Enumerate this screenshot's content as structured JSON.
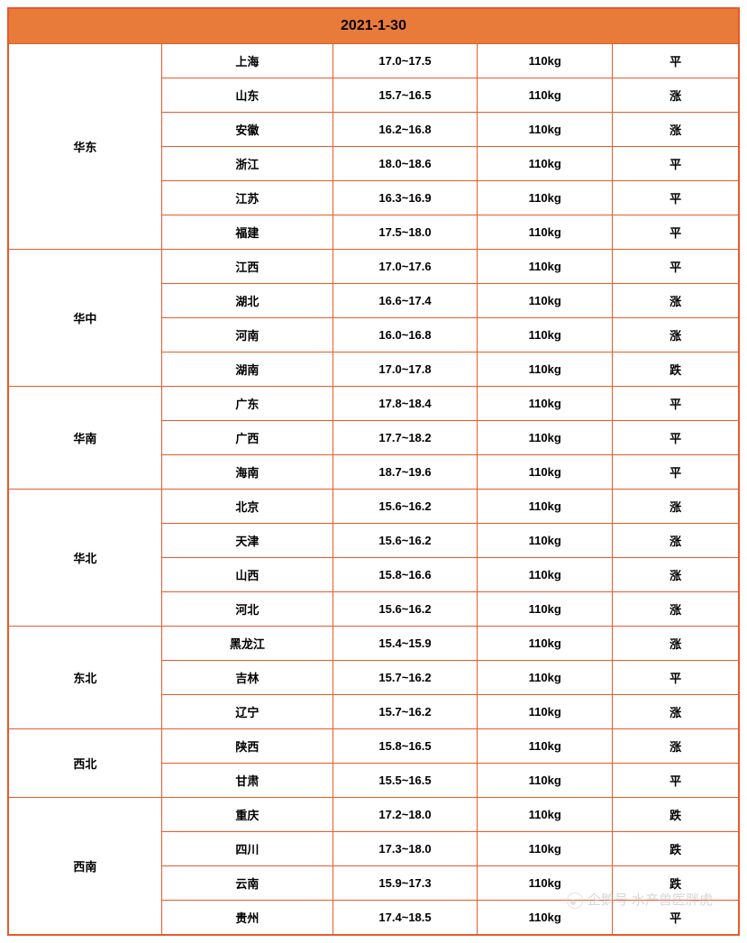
{
  "title": "2021-1-30",
  "trend_colors": {
    "up": "#e03020",
    "down": "#3db04a",
    "flat": "#000000"
  },
  "trend_labels": {
    "up": "涨",
    "down": "跌",
    "flat": "平"
  },
  "border_color": "#e85a2a",
  "header_bg": "#e97b3a",
  "regions": [
    {
      "name": "华东",
      "rows": [
        {
          "province": "上海",
          "price": "17.0~17.5",
          "weight": "110kg",
          "trend": "flat"
        },
        {
          "province": "山东",
          "price": "15.7~16.5",
          "weight": "110kg",
          "trend": "up"
        },
        {
          "province": "安徽",
          "price": "16.2~16.8",
          "weight": "110kg",
          "trend": "up"
        },
        {
          "province": "浙江",
          "price": "18.0~18.6",
          "weight": "110kg",
          "trend": "flat"
        },
        {
          "province": "江苏",
          "price": "16.3~16.9",
          "weight": "110kg",
          "trend": "flat"
        },
        {
          "province": "福建",
          "price": "17.5~18.0",
          "weight": "110kg",
          "trend": "flat"
        }
      ]
    },
    {
      "name": "华中",
      "rows": [
        {
          "province": "江西",
          "price": "17.0~17.6",
          "weight": "110kg",
          "trend": "flat"
        },
        {
          "province": "湖北",
          "price": "16.6~17.4",
          "weight": "110kg",
          "trend": "up"
        },
        {
          "province": "河南",
          "price": "16.0~16.8",
          "weight": "110kg",
          "trend": "up"
        },
        {
          "province": "湖南",
          "price": "17.0~17.8",
          "weight": "110kg",
          "trend": "down"
        }
      ]
    },
    {
      "name": "华南",
      "rows": [
        {
          "province": "广东",
          "price": "17.8~18.4",
          "weight": "110kg",
          "trend": "flat"
        },
        {
          "province": "广西",
          "price": "17.7~18.2",
          "weight": "110kg",
          "trend": "flat"
        },
        {
          "province": "海南",
          "price": "18.7~19.6",
          "weight": "110kg",
          "trend": "flat"
        }
      ]
    },
    {
      "name": "华北",
      "rows": [
        {
          "province": "北京",
          "price": "15.6~16.2",
          "weight": "110kg",
          "trend": "up"
        },
        {
          "province": "天津",
          "price": "15.6~16.2",
          "weight": "110kg",
          "trend": "up"
        },
        {
          "province": "山西",
          "price": "15.8~16.6",
          "weight": "110kg",
          "trend": "up"
        },
        {
          "province": "河北",
          "price": "15.6~16.2",
          "weight": "110kg",
          "trend": "up"
        }
      ]
    },
    {
      "name": "东北",
      "rows": [
        {
          "province": "黑龙江",
          "price": "15.4~15.9",
          "weight": "110kg",
          "trend": "up"
        },
        {
          "province": "吉林",
          "price": "15.7~16.2",
          "weight": "110kg",
          "trend": "flat"
        },
        {
          "province": "辽宁",
          "price": "15.7~16.2",
          "weight": "110kg",
          "trend": "up"
        }
      ]
    },
    {
      "name": "西北",
      "rows": [
        {
          "province": "陕西",
          "price": "15.8~16.5",
          "weight": "110kg",
          "trend": "up"
        },
        {
          "province": "甘肃",
          "price": "15.5~16.5",
          "weight": "110kg",
          "trend": "flat"
        }
      ]
    },
    {
      "name": "西南",
      "rows": [
        {
          "province": "重庆",
          "price": "17.2~18.0",
          "weight": "110kg",
          "trend": "down"
        },
        {
          "province": "四川",
          "price": "17.3~18.0",
          "weight": "110kg",
          "trend": "down"
        },
        {
          "province": "云南",
          "price": "15.9~17.3",
          "weight": "110kg",
          "trend": "down"
        },
        {
          "province": "贵州",
          "price": "17.4~18.5",
          "weight": "110kg",
          "trend": "flat"
        }
      ]
    }
  ],
  "watermark": "企鹅号 水产兽医胖虎"
}
